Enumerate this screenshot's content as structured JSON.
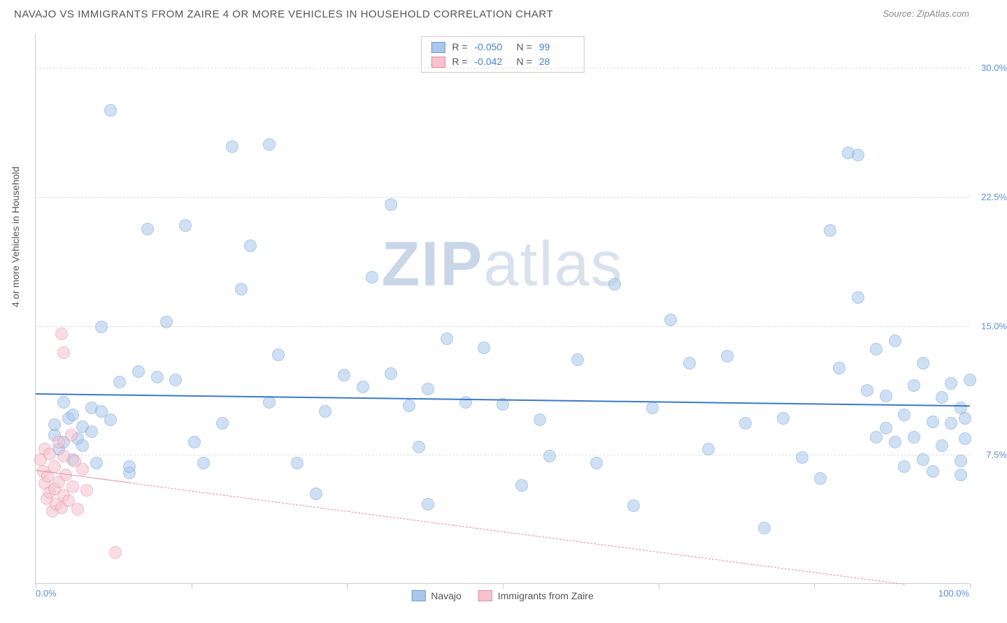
{
  "title": "NAVAJO VS IMMIGRANTS FROM ZAIRE 4 OR MORE VEHICLES IN HOUSEHOLD CORRELATION CHART",
  "source": "Source: ZipAtlas.com",
  "ylabel": "4 or more Vehicles in Household",
  "watermark_a": "ZIP",
  "watermark_b": "atlas",
  "chart": {
    "type": "scatter",
    "background_color": "#ffffff",
    "grid_color": "#dddddd",
    "axis_color": "#cccccc",
    "tick_label_color": "#5b8fd6",
    "xlim": [
      0,
      100
    ],
    "ylim": [
      0,
      32
    ],
    "ytick_labels": [
      "7.5%",
      "15.0%",
      "22.5%",
      "30.0%"
    ],
    "ytick_values": [
      7.5,
      15.0,
      22.5,
      30.0
    ],
    "xtick_values": [
      0,
      16.67,
      33.33,
      50,
      66.67,
      83.33,
      100
    ],
    "xtick_labels_shown": {
      "0": "0.0%",
      "100": "100.0%"
    },
    "marker_radius": 9,
    "marker_opacity": 0.55,
    "series": [
      {
        "name": "Navajo",
        "fill": "#a9c7ec",
        "stroke": "#6d9cd8",
        "R": "-0.050",
        "N": "99",
        "trend": {
          "y_at_x0": 11.1,
          "y_at_x100": 10.4,
          "color": "#3b78c9",
          "width": 2,
          "dashed": false
        },
        "points": [
          [
            2,
            9.2
          ],
          [
            2,
            8.6
          ],
          [
            2.5,
            7.8
          ],
          [
            3,
            8.2
          ],
          [
            3,
            10.5
          ],
          [
            3.5,
            9.6
          ],
          [
            4,
            9.8
          ],
          [
            4,
            7.2
          ],
          [
            4.5,
            8.4
          ],
          [
            5,
            8
          ],
          [
            5,
            9.1
          ],
          [
            6,
            10.2
          ],
          [
            6,
            8.8
          ],
          [
            6.5,
            7
          ],
          [
            7,
            10
          ],
          [
            7,
            14.9
          ],
          [
            8,
            9.5
          ],
          [
            8,
            27.5
          ],
          [
            9,
            11.7
          ],
          [
            10,
            6.4
          ],
          [
            10,
            6.8
          ],
          [
            11,
            12.3
          ],
          [
            12,
            20.6
          ],
          [
            13,
            12
          ],
          [
            14,
            15.2
          ],
          [
            15,
            11.8
          ],
          [
            16,
            20.8
          ],
          [
            17,
            8.2
          ],
          [
            18,
            7
          ],
          [
            20,
            9.3
          ],
          [
            21,
            25.4
          ],
          [
            22,
            17.1
          ],
          [
            23,
            19.6
          ],
          [
            25,
            10.5
          ],
          [
            25,
            25.5
          ],
          [
            26,
            13.3
          ],
          [
            28,
            7
          ],
          [
            30,
            5.2
          ],
          [
            31,
            10
          ],
          [
            33,
            12.1
          ],
          [
            35,
            11.4
          ],
          [
            36,
            17.8
          ],
          [
            38,
            22
          ],
          [
            38,
            12.2
          ],
          [
            40,
            10.3
          ],
          [
            41,
            7.9
          ],
          [
            42,
            4.6
          ],
          [
            42,
            11.3
          ],
          [
            44,
            14.2
          ],
          [
            46,
            10.5
          ],
          [
            48,
            13.7
          ],
          [
            50,
            10.4
          ],
          [
            52,
            5.7
          ],
          [
            54,
            9.5
          ],
          [
            55,
            7.4
          ],
          [
            58,
            13
          ],
          [
            60,
            7
          ],
          [
            62,
            17.4
          ],
          [
            64,
            4.5
          ],
          [
            66,
            10.2
          ],
          [
            68,
            15.3
          ],
          [
            70,
            12.8
          ],
          [
            72,
            7.8
          ],
          [
            74,
            13.2
          ],
          [
            76,
            9.3
          ],
          [
            78,
            3.2
          ],
          [
            80,
            9.6
          ],
          [
            82,
            7.3
          ],
          [
            84,
            6.1
          ],
          [
            85,
            20.5
          ],
          [
            86,
            12.5
          ],
          [
            87,
            25
          ],
          [
            88,
            16.6
          ],
          [
            88,
            24.9
          ],
          [
            89,
            11.2
          ],
          [
            90,
            8.5
          ],
          [
            90,
            13.6
          ],
          [
            91,
            9
          ],
          [
            91,
            10.9
          ],
          [
            92,
            8.2
          ],
          [
            92,
            14.1
          ],
          [
            93,
            6.8
          ],
          [
            93,
            9.8
          ],
          [
            94,
            8.5
          ],
          [
            94,
            11.5
          ],
          [
            95,
            7.2
          ],
          [
            95,
            12.8
          ],
          [
            96,
            6.5
          ],
          [
            96,
            9.4
          ],
          [
            97,
            10.8
          ],
          [
            97,
            8
          ],
          [
            98,
            9.3
          ],
          [
            98,
            11.6
          ],
          [
            99,
            7.1
          ],
          [
            99,
            6.3
          ],
          [
            99,
            10.2
          ],
          [
            99.5,
            8.4
          ],
          [
            99.5,
            9.6
          ],
          [
            100,
            11.8
          ]
        ]
      },
      {
        "name": "Immigrants from Zaire",
        "fill": "#f5c2cd",
        "stroke": "#e88aa0",
        "R": "-0.042",
        "N": "28",
        "trend": {
          "y_at_x0": 6.6,
          "y_at_x100": -0.5,
          "color": "#e88aa0",
          "width": 1,
          "dashed": true
        },
        "trend_solid_until_x": 10,
        "points": [
          [
            0.5,
            7.2
          ],
          [
            0.8,
            6.5
          ],
          [
            1,
            5.8
          ],
          [
            1,
            7.8
          ],
          [
            1.2,
            4.9
          ],
          [
            1.3,
            6.2
          ],
          [
            1.5,
            5.3
          ],
          [
            1.5,
            7.5
          ],
          [
            1.8,
            4.2
          ],
          [
            2,
            6.8
          ],
          [
            2,
            5.5
          ],
          [
            2.2,
            4.6
          ],
          [
            2.5,
            8.2
          ],
          [
            2.5,
            5.9
          ],
          [
            2.8,
            4.4
          ],
          [
            3,
            7.4
          ],
          [
            3,
            5.1
          ],
          [
            3.2,
            6.3
          ],
          [
            3.5,
            4.8
          ],
          [
            3.8,
            8.6
          ],
          [
            4,
            5.6
          ],
          [
            4.2,
            7.1
          ],
          [
            4.5,
            4.3
          ],
          [
            5,
            6.6
          ],
          [
            5.5,
            5.4
          ],
          [
            2.8,
            14.5
          ],
          [
            3,
            13.4
          ],
          [
            8.5,
            1.8
          ]
        ]
      }
    ]
  },
  "stats_box": {
    "r_label": "R =",
    "n_label": "N ="
  },
  "legend_labels": [
    "Navajo",
    "Immigrants from Zaire"
  ]
}
